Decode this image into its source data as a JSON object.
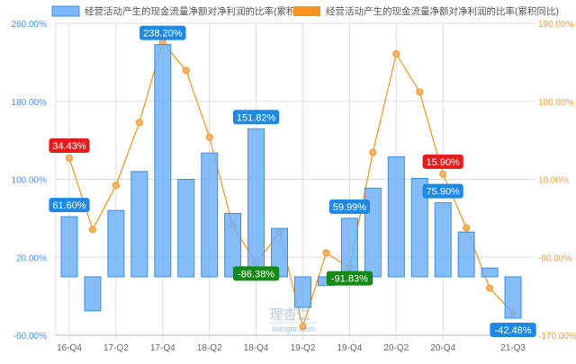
{
  "chart_data": {
    "type": "bar+line",
    "categories": [
      "16-Q4",
      "17-Q1",
      "17-Q2",
      "17-Q3",
      "17-Q4",
      "18-Q1",
      "18-Q2",
      "18-Q3",
      "18-Q4",
      "19-Q1",
      "19-Q2",
      "19-Q3",
      "19-Q4",
      "20-Q1",
      "20-Q2",
      "20-Q3",
      "20-Q4",
      "21-Q1",
      "21-Q2",
      "21-Q3"
    ],
    "x_tick_labels": [
      "16-Q4",
      "17-Q2",
      "17-Q4",
      "18-Q2",
      "18-Q4",
      "19-Q2",
      "19-Q4",
      "20-Q2",
      "20-Q4",
      "21-Q3"
    ],
    "left_axis": {
      "ylim": [
        -60,
        260
      ],
      "ticks": [
        "260.00%",
        "180.00%",
        "100.00%",
        "20.00%",
        "-60.00%"
      ],
      "color": "#4a90e2"
    },
    "right_axis": {
      "ylim": [
        -170,
        190
      ],
      "ticks": [
        "190.00%",
        "100.00%",
        "10.00%",
        "-80.00%",
        "-170.00%"
      ],
      "color": "#f39c3d"
    },
    "series": [
      {
        "name": "经营活动产生的现金流量净额对净利润的比率(累积)",
        "type": "bar",
        "axis": "left",
        "color": "#6fb1f7",
        "values": [
          61.6,
          -35,
          68,
          108,
          238.2,
          100,
          127,
          65,
          151.82,
          49.6,
          -31.5,
          -9,
          59.99,
          91,
          123,
          101,
          75.9,
          46,
          9,
          -42.48
        ]
      },
      {
        "name": "经营活动产生的现金流量净额对净利润的比率(累积同比)",
        "type": "line",
        "axis": "right",
        "color": "#f7931e",
        "values": [
          34.43,
          -48,
          3,
          75.5,
          168,
          135.7,
          58.6,
          -44,
          -86.38,
          -51.7,
          -160,
          -75,
          -91.83,
          41,
          154.7,
          110.8,
          15.9,
          -46,
          -115.7,
          -144.4
        ]
      }
    ],
    "annotations": [
      {
        "series": 0,
        "index": 0,
        "text": "61.60%",
        "color": "#1e88e5"
      },
      {
        "series": 0,
        "index": 4,
        "text": "238.20%",
        "color": "#1e88e5"
      },
      {
        "series": 0,
        "index": 8,
        "text": "151.82%",
        "color": "#1e88e5"
      },
      {
        "series": 0,
        "index": 12,
        "text": "59.99%",
        "color": "#1e88e5"
      },
      {
        "series": 0,
        "index": 16,
        "text": "75.90%",
        "color": "#1e88e5"
      },
      {
        "series": 0,
        "index": 19,
        "text": "-42.48%",
        "color": "#1e88e5"
      },
      {
        "series": 1,
        "index": 0,
        "text": "34.43%",
        "color": "#e51c1c"
      },
      {
        "series": 1,
        "index": 8,
        "text": "-86.38%",
        "color": "#138a13"
      },
      {
        "series": 1,
        "index": 12,
        "text": "-91.83%",
        "color": "#138a13"
      },
      {
        "series": 1,
        "index": 16,
        "text": "15.90%",
        "color": "#e51c1c"
      }
    ],
    "grid": true,
    "legend_placement": "top"
  },
  "watermark": {
    "logo": "理杏仁",
    "site": "lixinger.com"
  }
}
